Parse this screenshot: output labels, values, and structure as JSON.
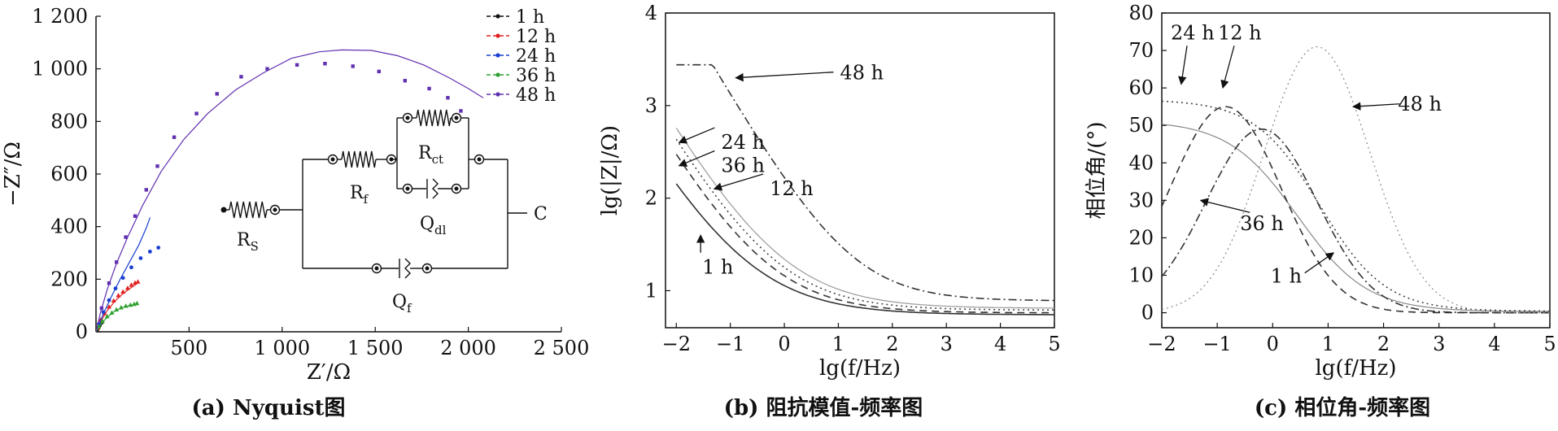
{
  "chart_data": [
    {
      "type": "scatter",
      "caption": "(a) Nyquist图",
      "xlabel": "Z′/Ω",
      "ylabel": "−Z″/Ω",
      "xlim": [
        0,
        2500
      ],
      "ylim": [
        0,
        1200
      ],
      "xticks": [
        500,
        1000,
        1500,
        2000,
        2500
      ],
      "xtick_labels": [
        "500",
        "1 000",
        "1 500",
        "2 000",
        "2 500"
      ],
      "yticks": [
        0,
        200,
        400,
        600,
        800,
        1000,
        1200
      ],
      "ytick_labels": [
        "0",
        "200",
        "400",
        "600",
        "800",
        "1 000",
        "1 200"
      ],
      "legend_position": "top-right",
      "series": [
        {
          "name": "1 h",
          "color": "#111111",
          "marker": "dot",
          "points": [
            [
              0,
              0
            ],
            [
              5,
              6
            ],
            [
              10,
              12
            ],
            [
              15,
              18
            ],
            [
              20,
              24
            ],
            [
              30,
              34
            ]
          ],
          "fit": [
            [
              0,
              0
            ],
            [
              8,
              10
            ],
            [
              16,
              18
            ],
            [
              26,
              28
            ],
            [
              34,
              36
            ]
          ]
        },
        {
          "name": "12 h",
          "color": "#e02020",
          "marker": "triangle",
          "points": [
            [
              10,
              15
            ],
            [
              25,
              45
            ],
            [
              45,
              70
            ],
            [
              70,
              95
            ],
            [
              95,
              118
            ],
            [
              120,
              138
            ],
            [
              145,
              152
            ],
            [
              170,
              166
            ],
            [
              190,
              178
            ],
            [
              210,
              186
            ],
            [
              225,
              190
            ]
          ],
          "fit": [
            [
              0,
              0
            ],
            [
              30,
              45
            ],
            [
              60,
              80
            ],
            [
              100,
              115
            ],
            [
              140,
              142
            ],
            [
              180,
              164
            ],
            [
              215,
              180
            ]
          ]
        },
        {
          "name": "24 h",
          "color": "#1a3fd0",
          "marker": "dot",
          "points": [
            [
              15,
              30
            ],
            [
              40,
              75
            ],
            [
              70,
              120
            ],
            [
              105,
              165
            ],
            [
              145,
              205
            ],
            [
              190,
              245
            ],
            [
              240,
              280
            ],
            [
              290,
              305
            ],
            [
              335,
              320
            ]
          ],
          "fit": [
            [
              0,
              0
            ],
            [
              40,
              70
            ],
            [
              80,
              130
            ],
            [
              130,
              200
            ],
            [
              180,
              265
            ],
            [
              230,
              330
            ],
            [
              270,
              395
            ],
            [
              290,
              435
            ]
          ]
        },
        {
          "name": "36 h",
          "color": "#30a030",
          "marker": "triangle",
          "points": [
            [
              15,
              20
            ],
            [
              35,
              40
            ],
            [
              60,
              58
            ],
            [
              85,
              72
            ],
            [
              110,
              84
            ],
            [
              135,
              92
            ],
            [
              160,
              98
            ],
            [
              185,
              102
            ],
            [
              205,
              105
            ],
            [
              220,
              108
            ]
          ],
          "fit": [
            [
              0,
              0
            ],
            [
              30,
              32
            ],
            [
              60,
              55
            ],
            [
              100,
              78
            ],
            [
              140,
              92
            ],
            [
              180,
              100
            ],
            [
              215,
              104
            ]
          ]
        },
        {
          "name": "48 h",
          "color": "#6030b0",
          "marker": "square",
          "points": [
            [
              30,
              90
            ],
            [
              70,
              185
            ],
            [
              110,
              265
            ],
            [
              160,
              360
            ],
            [
              210,
              440
            ],
            [
              270,
              540
            ],
            [
              330,
              630
            ],
            [
              420,
              740
            ],
            [
              540,
              830
            ],
            [
              650,
              905
            ],
            [
              780,
              970
            ],
            [
              920,
              1000
            ],
            [
              1080,
              1015
            ],
            [
              1230,
              1020
            ],
            [
              1380,
              1010
            ],
            [
              1520,
              990
            ],
            [
              1660,
              955
            ],
            [
              1790,
              925
            ],
            [
              1890,
              890
            ],
            [
              1960,
              840
            ]
          ],
          "fit": [
            [
              0,
              0
            ],
            [
              25,
              75
            ],
            [
              60,
              160
            ],
            [
              110,
              260
            ],
            [
              170,
              360
            ],
            [
              250,
              480
            ],
            [
              350,
              610
            ],
            [
              470,
              730
            ],
            [
              600,
              830
            ],
            [
              750,
              920
            ],
            [
              900,
              985
            ],
            [
              1050,
              1040
            ],
            [
              1200,
              1065
            ],
            [
              1320,
              1072
            ],
            [
              1480,
              1070
            ],
            [
              1620,
              1050
            ],
            [
              1760,
              1015
            ],
            [
              1900,
              965
            ],
            [
              2000,
              925
            ],
            [
              2080,
              890
            ]
          ]
        }
      ],
      "circuit": {
        "labels": {
          "rs": "R",
          "rs_sub": "S",
          "rf": "R",
          "rf_sub": "f",
          "rct": "R",
          "rct_sub": "ct",
          "qdl": "Q",
          "qdl_sub": "dl",
          "qf": "Q",
          "qf_sub": "f",
          "c": "C"
        }
      }
    },
    {
      "type": "line",
      "caption": "(b) 阻抗模值-频率图",
      "xlabel": "lg(f/Hz)",
      "ylabel": "lg(|Z|/Ω)",
      "xlim": [
        -2.2,
        5
      ],
      "ylim": [
        0.6,
        4
      ],
      "xticks": [
        -2,
        -1,
        0,
        1,
        2,
        3,
        4,
        5
      ],
      "xtick_labels": [
        "−2",
        "−1",
        "0",
        "1",
        "2",
        "3",
        "4",
        "5"
      ],
      "yticks": [
        1,
        2,
        3,
        4
      ],
      "ytick_labels": [
        "1",
        "2",
        "3",
        "4"
      ],
      "series": [
        {
          "name": "1 h",
          "style": "solid",
          "color": "#333333",
          "params": [
            0.74,
            1.5,
            -0.8,
            1.1
          ]
        },
        {
          "name": "12 h",
          "style": "dashed",
          "color": "#333333",
          "params": [
            0.76,
            2.0,
            -0.4,
            1.2
          ]
        },
        {
          "name": "24 h",
          "style": "dotted",
          "color": "#444444",
          "params": [
            0.79,
            2.1,
            -0.25,
            1.2
          ]
        },
        {
          "name": "36 h",
          "style": "solid-light",
          "color": "#999999",
          "params": [
            0.81,
            1.95,
            -0.15,
            1.15
          ]
        },
        {
          "name": "48 h",
          "style": "dashdot",
          "color": "#333333",
          "params": [
            0.89,
            2.55,
            1.2,
            1.35
          ]
        }
      ],
      "annotations": [
        {
          "text": "48 h",
          "x": 1.0,
          "y": 3.3,
          "arrow_to": [
            -0.9,
            3.3
          ]
        },
        {
          "text": "24 h",
          "x": -1.2,
          "y": 2.55,
          "arrow_to": [
            -1.95,
            2.6
          ]
        },
        {
          "text": "36 h",
          "x": -1.2,
          "y": 2.3,
          "arrow_to": [
            -1.95,
            2.35
          ]
        },
        {
          "text": "12 h",
          "x": -0.3,
          "y": 2.05,
          "arrow_to": [
            -1.3,
            2.1
          ]
        },
        {
          "text": "1 h",
          "x": -1.55,
          "y": 1.2,
          "arrow_to": [
            -1.55,
            1.6
          ]
        }
      ]
    },
    {
      "type": "line",
      "caption": "(c) 相位角-频率图",
      "xlabel": "lg(f/Hz)",
      "ylabel": "相位角/(°)",
      "xlim": [
        -2,
        5
      ],
      "ylim": [
        -4,
        80
      ],
      "xticks": [
        -2,
        -1,
        0,
        1,
        2,
        3,
        4,
        5
      ],
      "xtick_labels": [
        "−2",
        "−1",
        "0",
        "1",
        "2",
        "3",
        "4",
        "5"
      ],
      "yticks": [
        0,
        10,
        20,
        30,
        40,
        50,
        60,
        70,
        80
      ],
      "ytick_labels": [
        "0",
        "10",
        "20",
        "30",
        "40",
        "50",
        "60",
        "70",
        "80"
      ],
      "series": [
        {
          "name": "1 h",
          "style": "solid-light",
          "color": "#888888",
          "peak": 51,
          "center": -2.0,
          "width": 1.4
        },
        {
          "name": "12 h",
          "style": "dashed",
          "color": "#333333",
          "peak": 55,
          "center": -0.85,
          "width": 1.0
        },
        {
          "name": "24 h",
          "style": "dotted",
          "color": "#444444",
          "peak": 56.5,
          "center": -2.0,
          "width": 1.6
        },
        {
          "name": "36 h",
          "style": "dashdot",
          "color": "#333333",
          "peak": 49,
          "center": -0.2,
          "width": 1.0
        },
        {
          "name": "48 h",
          "style": "dotted-light",
          "color": "#888888",
          "peak": 71,
          "center": 0.8,
          "width": 0.95
        }
      ],
      "annotations": [
        {
          "text": "24 h",
          "x": -1.75,
          "y": 73,
          "arrow_to": [
            -1.65,
            61
          ]
        },
        {
          "text": "12 h",
          "x": -0.9,
          "y": 73,
          "arrow_to": [
            -0.9,
            60
          ]
        },
        {
          "text": "48 h",
          "x": 2.35,
          "y": 54,
          "arrow_to": [
            1.45,
            55
          ]
        },
        {
          "text": "36 h",
          "x": -0.5,
          "y": 22,
          "arrow_to": [
            -1.3,
            30
          ]
        },
        {
          "text": "1 h",
          "x": 0.05,
          "y": 8,
          "arrow_to": [
            1.1,
            16
          ]
        }
      ]
    }
  ]
}
